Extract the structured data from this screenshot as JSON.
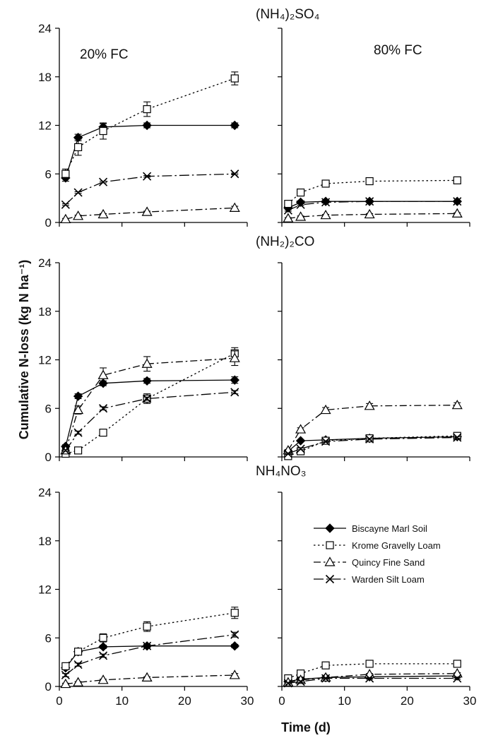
{
  "figure": {
    "ylabel": "Cumulative N-loss (kg N ha⁻¹)",
    "xlabel": "Time (d)",
    "row_titles": [
      "(NH₄)₂SO₄",
      "(NH₂)₂CO",
      "NH₄NO₃"
    ],
    "column_titles": [
      "20% FC",
      "80% FC"
    ],
    "legend_position": "top-right of bottom-right panel"
  },
  "chart_data": [
    {
      "type": "line",
      "row_title": "(NH₄)₂SO₄",
      "note": "20% FC",
      "x": [
        1,
        3,
        7,
        14,
        28
      ],
      "xlim": [
        0,
        30
      ],
      "ylim": [
        0,
        24
      ],
      "xticks": [
        0,
        10,
        20,
        30
      ],
      "yticks": [
        0,
        6,
        12,
        18,
        24
      ],
      "series": [
        {
          "name": "Biscayne Marl Soil",
          "values": [
            5.5,
            10.5,
            11.8,
            12.0,
            12.0
          ],
          "err": [
            0.4,
            0.4,
            0.4,
            0.3,
            0.3
          ]
        },
        {
          "name": "Krome Gravelly Loam",
          "values": [
            6.0,
            9.3,
            11.3,
            14.0,
            17.8
          ],
          "err": [
            0.6,
            1.0,
            1.0,
            0.9,
            0.8
          ]
        },
        {
          "name": "Quincy Fine Sand",
          "values": [
            0.4,
            0.8,
            1.0,
            1.3,
            1.8
          ],
          "err": [
            0.1,
            0.1,
            0.1,
            0.1,
            0.2
          ]
        },
        {
          "name": "Warden Silt Loam",
          "values": [
            2.2,
            3.7,
            5.0,
            5.7,
            6.0
          ],
          "err": [
            0.1,
            0.1,
            0.1,
            0.1,
            0.1
          ]
        }
      ]
    },
    {
      "type": "line",
      "row_title": "(NH₄)₂SO₄",
      "note": "80% FC",
      "x": [
        1,
        3,
        7,
        14,
        28
      ],
      "xlim": [
        0,
        30
      ],
      "ylim": [
        0,
        24
      ],
      "xticks": [
        0,
        10,
        20,
        30
      ],
      "yticks": [
        0,
        6,
        12,
        18,
        24
      ],
      "series": [
        {
          "name": "Biscayne Marl Soil",
          "values": [
            1.8,
            2.5,
            2.6,
            2.6,
            2.6
          ],
          "err": [
            0.1,
            0.1,
            0.1,
            0.1,
            0.1
          ]
        },
        {
          "name": "Krome Gravelly Loam",
          "values": [
            2.3,
            3.7,
            4.8,
            5.1,
            5.2
          ],
          "err": [
            0.2,
            0.3,
            0.4,
            0.4,
            0.4
          ]
        },
        {
          "name": "Quincy Fine Sand",
          "values": [
            0.5,
            0.7,
            0.9,
            1.0,
            1.1
          ],
          "err": [
            0.1,
            0.1,
            0.1,
            0.1,
            0.1
          ]
        },
        {
          "name": "Warden Silt Loam",
          "values": [
            1.5,
            2.2,
            2.5,
            2.6,
            2.6
          ],
          "err": [
            0.1,
            0.1,
            0.1,
            0.1,
            0.1
          ]
        }
      ]
    },
    {
      "type": "line",
      "row_title": "(NH₂)₂CO",
      "note": "20% FC",
      "x": [
        1,
        3,
        7,
        14,
        28
      ],
      "xlim": [
        0,
        30
      ],
      "ylim": [
        0,
        24
      ],
      "xticks": [
        0,
        10,
        20,
        30
      ],
      "yticks": [
        0,
        6,
        12,
        18,
        24
      ],
      "series": [
        {
          "name": "Biscayne Marl Soil",
          "values": [
            1.3,
            7.5,
            9.1,
            9.4,
            9.5
          ],
          "err": [
            0.2,
            0.3,
            0.3,
            0.3,
            0.4
          ]
        },
        {
          "name": "Krome Gravelly Loam",
          "values": [
            0.4,
            0.8,
            3.0,
            7.2,
            12.8
          ],
          "err": [
            0.1,
            0.1,
            0.3,
            0.6,
            0.7
          ]
        },
        {
          "name": "Quincy Fine Sand",
          "values": [
            0.8,
            5.8,
            10.1,
            11.5,
            12.2
          ],
          "err": [
            0.2,
            0.5,
            0.9,
            0.9,
            0.9
          ]
        },
        {
          "name": "Warden Silt Loam",
          "values": [
            0.8,
            3.0,
            6.0,
            7.2,
            8.0
          ],
          "err": [
            0.1,
            0.2,
            0.2,
            0.2,
            0.2
          ]
        }
      ]
    },
    {
      "type": "line",
      "row_title": "(NH₂)₂CO",
      "note": "80% FC",
      "x": [
        1,
        3,
        7,
        14,
        28
      ],
      "xlim": [
        0,
        30
      ],
      "ylim": [
        0,
        24
      ],
      "xticks": [
        0,
        10,
        20,
        30
      ],
      "yticks": [
        0,
        6,
        12,
        18,
        24
      ],
      "series": [
        {
          "name": "Biscayne Marl Soil",
          "values": [
            0.7,
            2.0,
            2.1,
            2.3,
            2.5
          ],
          "err": [
            0.1,
            0.1,
            0.1,
            0.1,
            0.1
          ]
        },
        {
          "name": "Krome Gravelly Loam",
          "values": [
            0.1,
            0.7,
            2.0,
            2.3,
            2.6
          ],
          "err": [
            0.1,
            0.1,
            0.1,
            0.1,
            0.1
          ]
        },
        {
          "name": "Quincy Fine Sand",
          "values": [
            0.8,
            3.4,
            5.8,
            6.3,
            6.4
          ],
          "err": [
            0.1,
            0.2,
            0.3,
            0.3,
            0.3
          ]
        },
        {
          "name": "Warden Silt Loam",
          "values": [
            0.4,
            1.0,
            1.9,
            2.2,
            2.4
          ],
          "err": [
            0.1,
            0.1,
            0.1,
            0.1,
            0.1
          ]
        }
      ]
    },
    {
      "type": "line",
      "row_title": "NH₄NO₃",
      "note": "20% FC",
      "x": [
        1,
        3,
        7,
        14,
        28
      ],
      "xlim": [
        0,
        30
      ],
      "ylim": [
        0,
        24
      ],
      "xticks": [
        0,
        10,
        20,
        30
      ],
      "yticks": [
        0,
        6,
        12,
        18,
        24
      ],
      "series": [
        {
          "name": "Biscayne Marl Soil",
          "values": [
            2.3,
            4.3,
            4.9,
            5.0,
            5.0
          ],
          "err": [
            0.2,
            0.2,
            0.2,
            0.2,
            0.2
          ]
        },
        {
          "name": "Krome Gravelly Loam",
          "values": [
            2.5,
            4.3,
            6.0,
            7.4,
            9.1
          ],
          "err": [
            0.3,
            0.3,
            0.5,
            0.6,
            0.7
          ]
        },
        {
          "name": "Quincy Fine Sand",
          "values": [
            0.3,
            0.5,
            0.8,
            1.1,
            1.4
          ],
          "err": [
            0.1,
            0.1,
            0.1,
            0.1,
            0.2
          ]
        },
        {
          "name": "Warden Silt Loam",
          "values": [
            1.4,
            2.7,
            3.8,
            5.0,
            6.4
          ],
          "err": [
            0.2,
            0.2,
            0.2,
            0.2,
            0.3
          ]
        }
      ]
    },
    {
      "type": "line",
      "row_title": "NH₄NO₃",
      "note": "80% FC",
      "x": [
        1,
        3,
        7,
        14,
        28
      ],
      "xlim": [
        0,
        30
      ],
      "ylim": [
        0,
        24
      ],
      "xticks": [
        0,
        10,
        20,
        30
      ],
      "yticks": [
        0,
        6,
        12,
        18,
        24
      ],
      "series": [
        {
          "name": "Biscayne Marl Soil",
          "values": [
            0.6,
            0.9,
            1.1,
            1.2,
            1.3
          ],
          "err": [
            0.1,
            0.1,
            0.1,
            0.1,
            0.1
          ]
        },
        {
          "name": "Krome Gravelly Loam",
          "values": [
            1.0,
            1.6,
            2.6,
            2.8,
            2.8
          ],
          "err": [
            0.1,
            0.1,
            0.2,
            0.2,
            0.2
          ]
        },
        {
          "name": "Quincy Fine Sand",
          "values": [
            0.5,
            0.8,
            1.1,
            1.5,
            1.6
          ],
          "err": [
            0.1,
            0.1,
            0.1,
            0.1,
            0.1
          ]
        },
        {
          "name": "Warden Silt Loam",
          "values": [
            0.4,
            0.6,
            1.0,
            1.0,
            1.0
          ],
          "err": [
            0.1,
            0.1,
            0.1,
            0.1,
            0.1
          ]
        }
      ]
    }
  ]
}
